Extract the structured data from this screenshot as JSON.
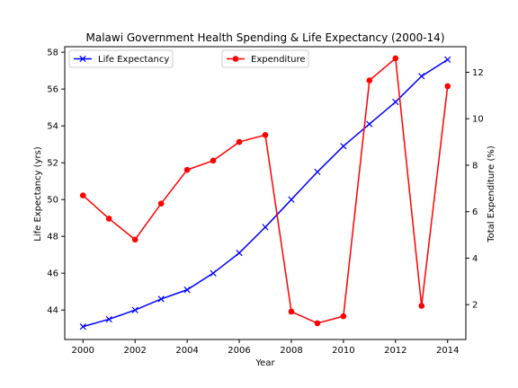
{
  "chart_data": {
    "type": "line",
    "title": "Malawi Government Health Spending & Life Expectancy (2000-14)",
    "xlabel": "Year",
    "x": [
      2000,
      2001,
      2002,
      2003,
      2004,
      2005,
      2006,
      2007,
      2008,
      2009,
      2010,
      2011,
      2012,
      2013,
      2014
    ],
    "xlim": [
      1999.3,
      2014.7
    ],
    "xticks": [
      2000,
      2002,
      2004,
      2006,
      2008,
      2010,
      2012,
      2014
    ],
    "left_axis": {
      "label": "Life Expectancy (yrs)",
      "ylim": [
        42.4,
        58.3
      ],
      "ticks": [
        44,
        46,
        48,
        50,
        52,
        54,
        56,
        58
      ]
    },
    "right_axis": {
      "label": "Total Expenditure (%)",
      "ylim": [
        0.5,
        13.1
      ],
      "ticks": [
        2,
        4,
        6,
        8,
        10,
        12
      ]
    },
    "series": [
      {
        "name": "Life Expectancy",
        "axis": "left",
        "color": "#0000ff",
        "marker": "x",
        "legend_position": "upper-left",
        "values": [
          43.1,
          43.5,
          44.0,
          44.6,
          45.1,
          46.0,
          47.1,
          48.5,
          50.0,
          51.5,
          52.9,
          54.1,
          55.3,
          56.7,
          57.6
        ]
      },
      {
        "name": "Expenditure",
        "axis": "right",
        "color": "#ff0000",
        "marker": "o",
        "legend_position": "upper-center",
        "values": [
          6.7,
          5.7,
          4.8,
          6.35,
          7.8,
          8.2,
          9.0,
          9.3,
          1.7,
          1.2,
          1.5,
          11.65,
          12.6,
          1.95,
          11.4
        ]
      }
    ],
    "grid": false
  }
}
